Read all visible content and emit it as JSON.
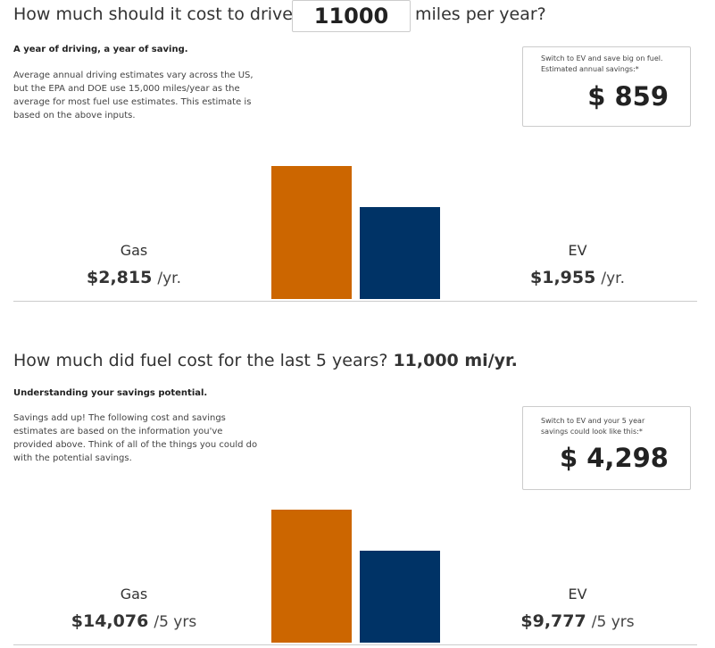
{
  "sections": [
    {
      "heading": "How much should it cost to drive",
      "input": "11000",
      "heading_end": "miles per year?",
      "subtitle": "A year of driving, a year of saving.",
      "description": "Average annual driving estimates vary across the US, but the EPA and DOE use 15,000 miles/year as the average for most fuel use estimates. This estimate is based on the above inputs.",
      "savings_caption": "Switch to EV and save big on fuel. Estimated annual savings:*",
      "savings": "$ 859",
      "bars": [
        {
          "name": "Gas",
          "value": 2815,
          "label": "$2,815",
          "unit": "/yr.",
          "color": "#cc6600"
        },
        {
          "name": "EV",
          "value": 1955,
          "label": "$1,955",
          "unit": "/yr.",
          "color": "#003366"
        }
      ]
    },
    {
      "heading": "How much did fuel cost for the last 5 years?",
      "heading_bold": "11,000 mi/yr.",
      "subtitle": "Understanding your savings potential.",
      "description": "Savings add up! The following cost and savings estimates are based on the information you've provided above. Think of all of the things you could do with the potential savings.",
      "savings_caption": "Switch to EV and your 5 year savings could look like this:*",
      "savings": "$ 4,298",
      "bars": [
        {
          "name": "Gas",
          "value": 14076,
          "label": "$14,076",
          "unit": "/5 yrs",
          "color": "#cc6600"
        },
        {
          "name": "EV",
          "value": 9777,
          "label": "$9,777",
          "unit": "/5 yrs",
          "color": "#003366"
        }
      ]
    }
  ]
}
